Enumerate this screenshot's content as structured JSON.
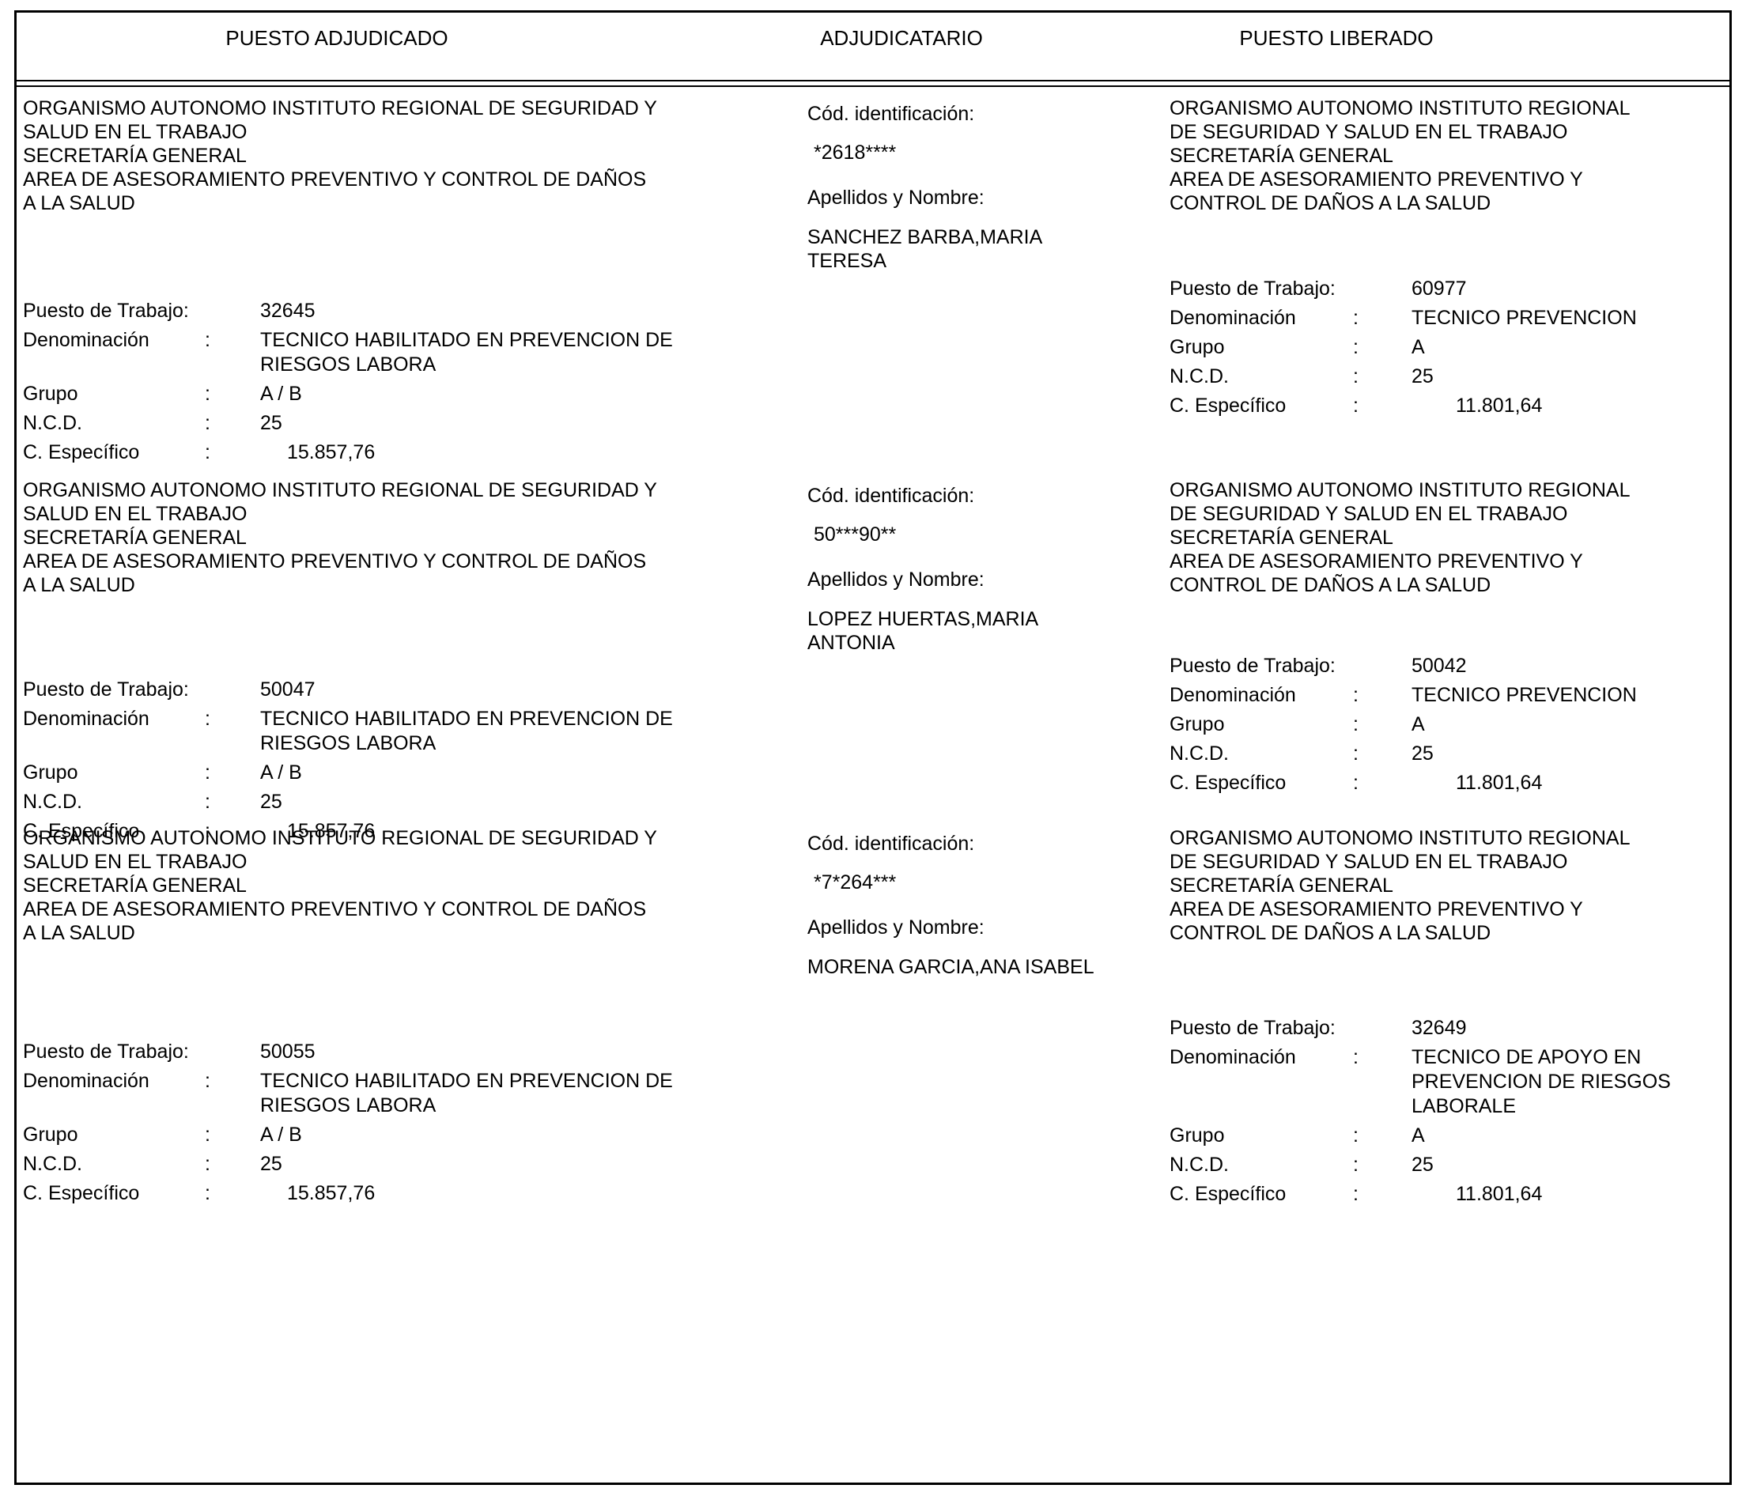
{
  "table": {
    "headers": [
      "PUESTO ADJUDICADO",
      "ADJUDICATARIO",
      "PUESTO LIBERADO"
    ]
  },
  "labels": {
    "puesto_trabajo": "Puesto de Trabajo:",
    "denominacion": "Denominación",
    "grupo": "Grupo",
    "ncd": "N.C.D.",
    "c_especifico": "C. Específico",
    "colon": ":",
    "cod_identificacion": "Cód. identificación:",
    "apellidos_nombre": "Apellidos y Nombre:"
  },
  "records": [
    {
      "awarded": {
        "organization": "ORGANISMO AUTONOMO INSTITUTO REGIONAL DE SEGURIDAD Y\nSALUD EN EL TRABAJO\nSECRETARÍA GENERAL\nAREA DE ASESORAMIENTO PREVENTIVO Y CONTROL DE DAÑOS\nA LA SALUD",
        "puesto": "32645",
        "denominacion": "TECNICO HABILITADO EN PREVENCION DE\nRIESGOS LABORA",
        "grupo": "A / B",
        "ncd": "25",
        "c_especifico": "15.857,76"
      },
      "awardee": {
        "cod": "*2618****",
        "nombre": "SANCHEZ BARBA,MARIA\nTERESA"
      },
      "released": {
        "organization": "ORGANISMO AUTONOMO INSTITUTO REGIONAL\nDE SEGURIDAD Y SALUD EN EL TRABAJO\nSECRETARÍA GENERAL\nAREA DE ASESORAMIENTO PREVENTIVO Y\nCONTROL DE DAÑOS A LA SALUD",
        "puesto": "60977",
        "denominacion": "TECNICO PREVENCION",
        "grupo": "A",
        "ncd": "25",
        "c_especifico": "11.801,64"
      }
    },
    {
      "awarded": {
        "organization": "ORGANISMO AUTONOMO INSTITUTO REGIONAL DE SEGURIDAD Y\nSALUD EN EL TRABAJO\nSECRETARÍA GENERAL\nAREA DE ASESORAMIENTO PREVENTIVO Y CONTROL DE DAÑOS\nA LA SALUD",
        "puesto": "50047",
        "denominacion": "TECNICO HABILITADO EN PREVENCION DE\nRIESGOS LABORA",
        "grupo": "A / B",
        "ncd": "25",
        "c_especifico": "15.857,76"
      },
      "awardee": {
        "cod": "50***90**",
        "nombre": "LOPEZ HUERTAS,MARIA\nANTONIA"
      },
      "released": {
        "organization": "ORGANISMO AUTONOMO INSTITUTO REGIONAL\nDE SEGURIDAD Y SALUD EN EL TRABAJO\nSECRETARÍA GENERAL\nAREA DE ASESORAMIENTO PREVENTIVO Y\nCONTROL DE DAÑOS A LA SALUD",
        "puesto": "50042",
        "denominacion": "TECNICO PREVENCION",
        "grupo": "A",
        "ncd": "25",
        "c_especifico": "11.801,64"
      }
    },
    {
      "awarded": {
        "organization": "ORGANISMO AUTONOMO INSTITUTO REGIONAL DE SEGURIDAD Y\nSALUD EN EL TRABAJO\nSECRETARÍA GENERAL\nAREA DE ASESORAMIENTO PREVENTIVO Y CONTROL DE DAÑOS\nA LA SALUD",
        "puesto": "50055",
        "denominacion": "TECNICO HABILITADO EN PREVENCION DE\nRIESGOS LABORA",
        "grupo": "A / B",
        "ncd": "25",
        "c_especifico": "15.857,76"
      },
      "awardee": {
        "cod": "*7*264***",
        "nombre": "MORENA GARCIA,ANA ISABEL"
      },
      "released": {
        "organization": "ORGANISMO AUTONOMO INSTITUTO REGIONAL\nDE SEGURIDAD Y SALUD EN EL TRABAJO\nSECRETARÍA GENERAL\nAREA DE ASESORAMIENTO PREVENTIVO Y\nCONTROL DE DAÑOS A LA SALUD",
        "puesto": "32649",
        "denominacion": "TECNICO DE APOYO EN\nPREVENCION DE RIESGOS\nLABORALE",
        "grupo": "A",
        "ncd": "25",
        "c_especifico": "11.801,64"
      }
    }
  ]
}
